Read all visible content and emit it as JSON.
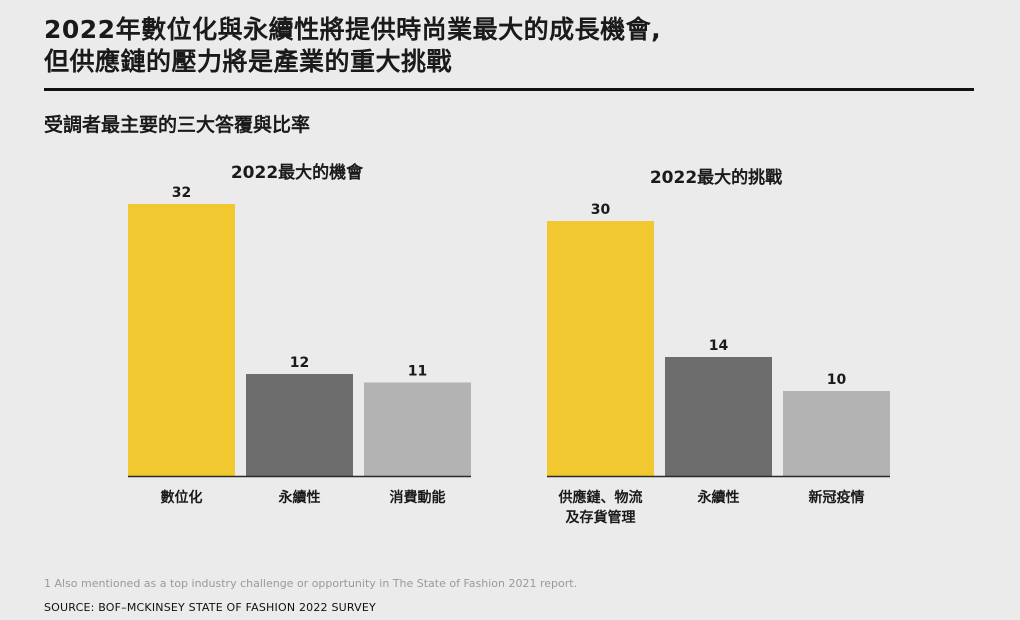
{
  "title_line1": "2022年數位化與永續性將提供時尚業最大的成長機會,",
  "title_line2": "但供應鏈的壓力將是產業的重大挑戰",
  "subtitle": "受調者最主要的三大答覆與比率",
  "footnote": "1 Also mentioned as a top industry challenge or opportunity in The State of Fashion 2021 report.",
  "source": "SOURCE: BOF–MCKINSEY STATE OF FASHION 2022 SURVEY",
  "colors": {
    "yellow": "#f2c830",
    "dark_gray": "#6e6d6d",
    "light_gray": "#b3b3b3"
  },
  "chart_data": [
    {
      "type": "bar",
      "title": "2022最大的機會",
      "categories": [
        "數位化",
        "永續性",
        "消費動能"
      ],
      "values": [
        32,
        12,
        11
      ],
      "colors": [
        "#f2c830",
        "#6e6d6d",
        "#b3b3b3"
      ],
      "ylim": [
        0,
        32
      ],
      "grid": false
    },
    {
      "type": "bar",
      "title": "2022最大的挑戰",
      "categories": [
        "供應鏈、物流\n及存貨管理",
        "永續性",
        "新冠疫情"
      ],
      "values": [
        30,
        14,
        10
      ],
      "colors": [
        "#f2c830",
        "#6e6d6d",
        "#b3b3b3"
      ],
      "ylim": [
        0,
        32
      ],
      "grid": false
    }
  ]
}
